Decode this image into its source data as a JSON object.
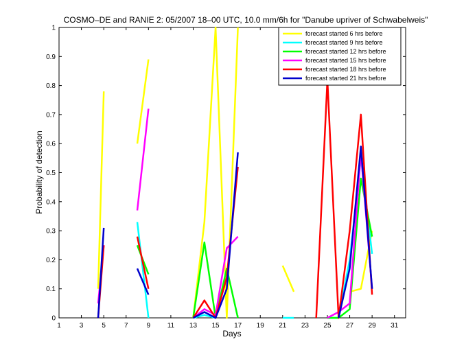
{
  "chart_data": {
    "type": "line",
    "title": "COSMO–DE and RANIE 2: 05/2007 18–00 UTC, 10.0 mm/6h for \"Danube upriver of Schwabelweis\"",
    "xlabel": "Days",
    "ylabel": "Probability of detection",
    "xlim": [
      1,
      32
    ],
    "ylim": [
      0,
      1
    ],
    "x_ticks": [
      1,
      3,
      5,
      7,
      9,
      11,
      13,
      15,
      17,
      19,
      21,
      23,
      25,
      27,
      29,
      31
    ],
    "y_ticks": [
      0,
      0.1,
      0.2,
      0.3,
      0.4,
      0.5,
      0.6,
      0.7,
      0.8,
      0.9,
      1
    ],
    "y_tick_labels": [
      "0",
      "0.1",
      "0.2",
      "0.3",
      "0.4",
      "0.5",
      "0.6",
      "0.7",
      "0.8",
      "0.9",
      "1"
    ],
    "legend_position": "top-right",
    "grid": false,
    "series": [
      {
        "name": "forecast started 6 hrs before",
        "color": "#ffff00",
        "segments": [
          [
            [
              4.5,
              0.1
            ],
            [
              5,
              0.78
            ]
          ],
          [
            [
              8,
              0.6
            ],
            [
              9,
              0.89
            ]
          ],
          [
            [
              13,
              0
            ],
            [
              14,
              0.33
            ],
            [
              15,
              1.0
            ],
            [
              16,
              0
            ],
            [
              17,
              1.0
            ]
          ],
          [
            [
              21,
              0.18
            ],
            [
              22,
              0.09
            ]
          ],
          [
            [
              27,
              0.09
            ],
            [
              28,
              0.1
            ],
            [
              29,
              0.3
            ]
          ]
        ]
      },
      {
        "name": "forecast started 9 hrs before",
        "color": "#00ffff",
        "segments": [
          [
            [
              8,
              0.33
            ],
            [
              9,
              0
            ]
          ],
          [
            [
              13,
              0
            ],
            [
              14,
              0.01
            ],
            [
              15,
              0
            ]
          ],
          [
            [
              21,
              0
            ],
            [
              22,
              0
            ]
          ],
          [
            [
              25,
              0
            ],
            [
              26,
              0
            ],
            [
              27,
              0.2
            ],
            [
              28,
              0.55
            ],
            [
              29,
              0.22
            ]
          ]
        ]
      },
      {
        "name": "forecast started 12 hrs before",
        "color": "#00ff00",
        "segments": [
          [
            [
              8,
              0.25
            ],
            [
              9,
              0.15
            ]
          ],
          [
            [
              13,
              0
            ],
            [
              14,
              0.26
            ],
            [
              15,
              0
            ],
            [
              16,
              0.17
            ],
            [
              17,
              0
            ]
          ],
          [
            [
              25,
              0
            ],
            [
              26,
              0
            ],
            [
              27,
              0.03
            ],
            [
              28,
              0.48
            ],
            [
              29,
              0.28
            ]
          ]
        ]
      },
      {
        "name": "forecast started 15 hrs before",
        "color": "#ff00ff",
        "segments": [
          [
            [
              4.5,
              0.05
            ],
            [
              5,
              0.25
            ]
          ],
          [
            [
              8,
              0.37
            ],
            [
              9,
              0.72
            ]
          ],
          [
            [
              13,
              0
            ],
            [
              14,
              0.03
            ],
            [
              15,
              0.01
            ],
            [
              16,
              0.24
            ],
            [
              17,
              0.28
            ]
          ],
          [
            [
              25,
              0
            ],
            [
              26,
              0.02
            ],
            [
              27,
              0.05
            ],
            [
              28,
              0.57
            ],
            [
              29,
              0.1
            ]
          ]
        ]
      },
      {
        "name": "forecast started 18 hrs before",
        "color": "#ff0000",
        "segments": [
          [
            [
              4.5,
              0
            ],
            [
              5,
              0.25
            ]
          ],
          [
            [
              8,
              0.28
            ],
            [
              9,
              0.1
            ]
          ],
          [
            [
              13,
              0
            ],
            [
              14,
              0.06
            ],
            [
              15,
              0
            ],
            [
              16,
              0.14
            ],
            [
              17,
              0.52
            ]
          ],
          [
            [
              24,
              0
            ],
            [
              25,
              0.82
            ],
            [
              26,
              0
            ],
            [
              27,
              0.3
            ],
            [
              28,
              0.7
            ],
            [
              29,
              0.08
            ]
          ]
        ]
      },
      {
        "name": "forecast started 21 hrs before",
        "color": "#0000cc",
        "segments": [
          [
            [
              4.5,
              0
            ],
            [
              5,
              0.31
            ]
          ],
          [
            [
              8,
              0.17
            ],
            [
              9,
              0.08
            ]
          ],
          [
            [
              13,
              0
            ],
            [
              14,
              0.02
            ],
            [
              15,
              0
            ],
            [
              16,
              0.1
            ],
            [
              17,
              0.57
            ]
          ],
          [
            [
              26,
              0
            ],
            [
              27,
              0.17
            ],
            [
              28,
              0.59
            ],
            [
              29,
              0.1
            ]
          ]
        ]
      }
    ]
  }
}
